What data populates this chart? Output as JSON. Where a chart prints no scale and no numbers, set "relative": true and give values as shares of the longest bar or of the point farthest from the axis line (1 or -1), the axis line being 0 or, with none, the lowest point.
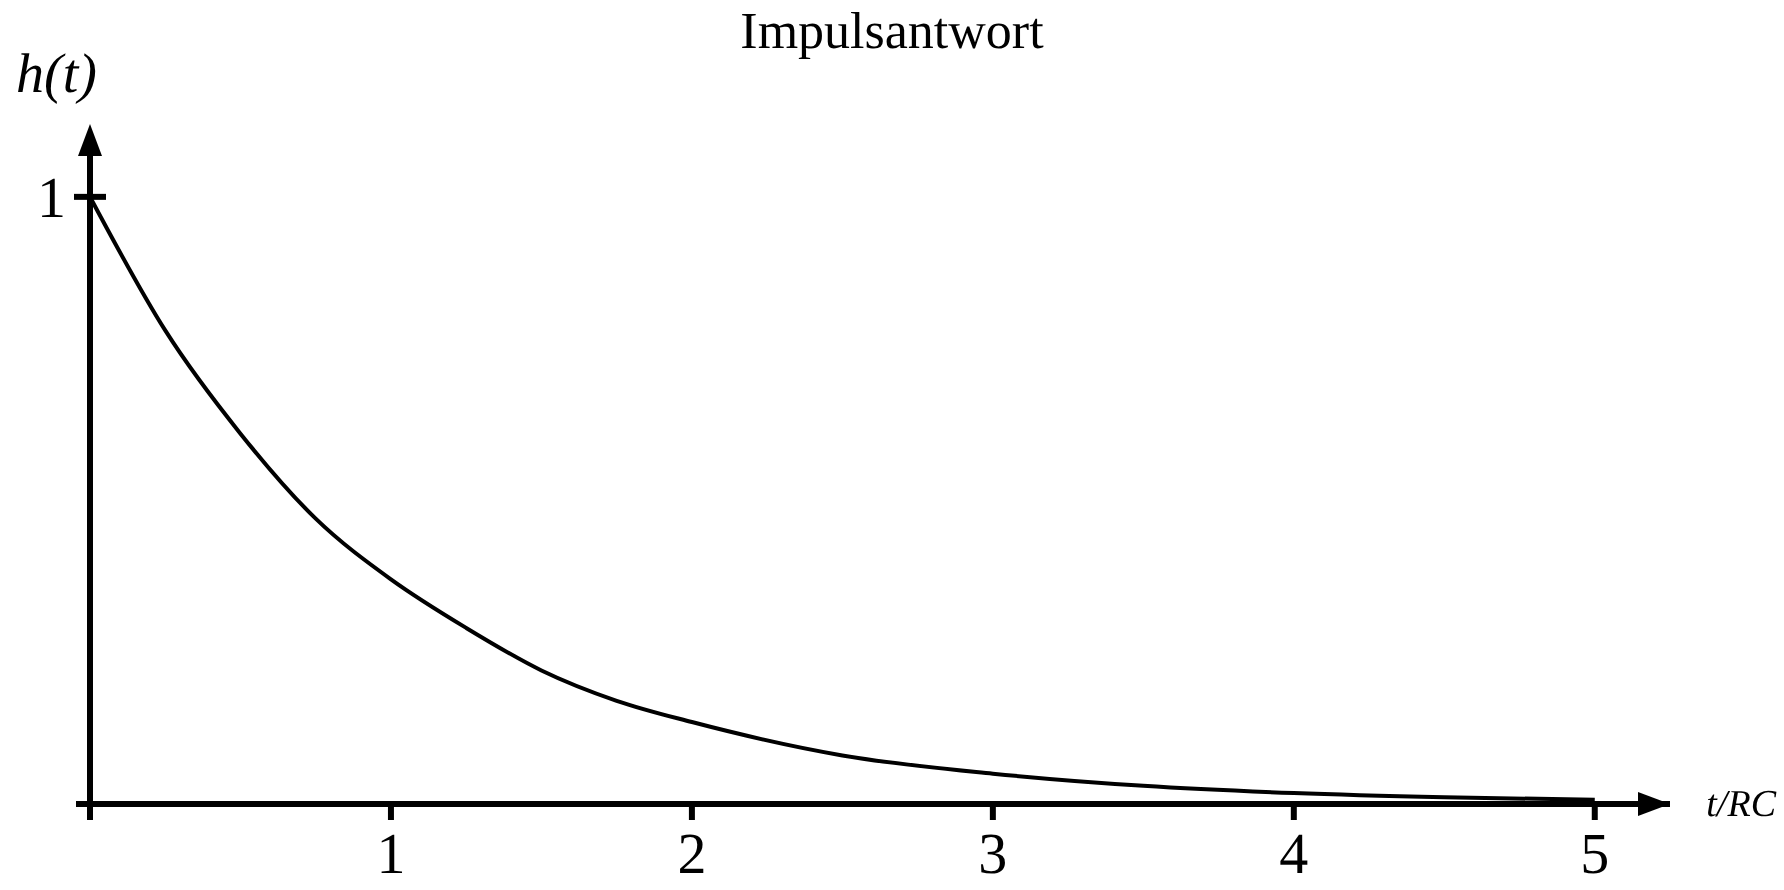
{
  "chart_data": {
    "type": "line",
    "title": "Impulsantwort",
    "xlabel": "t/RC",
    "ylabel": "h(t)",
    "relative": true,
    "x": [
      0,
      0.25,
      0.5,
      0.75,
      1,
      1.25,
      1.5,
      1.75,
      2,
      2.5,
      3,
      3.5,
      4,
      4.5,
      5
    ],
    "series": [
      {
        "color": "#000000",
        "values": [
          1,
          0.78,
          0.61,
          0.47,
          0.37,
          0.29,
          0.22,
          0.17,
          0.135,
          0.08,
          0.05,
          0.03,
          0.018,
          0.011,
          0.007
        ]
      }
    ],
    "xlim": [
      0,
      5.25
    ],
    "xticks": [
      {
        "value": 0,
        "label": null
      },
      1,
      2,
      3,
      4,
      5
    ],
    "annotations": [
      {
        "text": "1",
        "x": 0,
        "y": 1
      }
    ],
    "marker": "none",
    "line_style": "solid"
  }
}
